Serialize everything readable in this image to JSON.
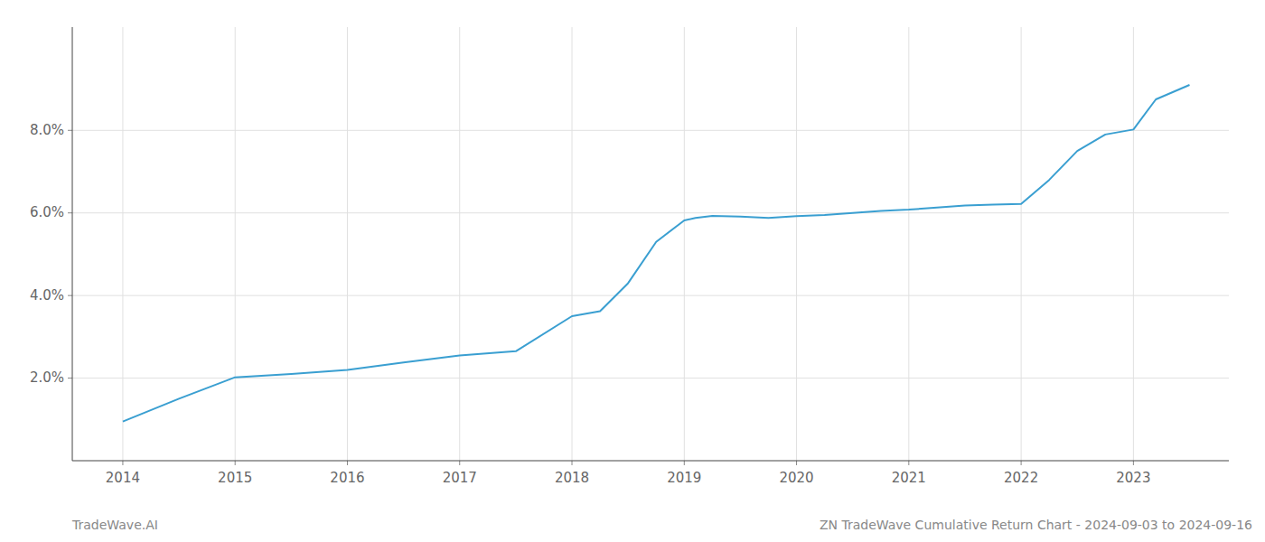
{
  "chart_data": {
    "type": "line",
    "x": [
      2014.0,
      2014.5,
      2015.0,
      2015.5,
      2016.0,
      2016.5,
      2017.0,
      2017.5,
      2018.0,
      2018.25,
      2018.5,
      2018.75,
      2019.0,
      2019.1,
      2019.25,
      2019.5,
      2019.75,
      2020.0,
      2020.25,
      2020.5,
      2020.75,
      2021.0,
      2021.25,
      2021.5,
      2021.75,
      2022.0,
      2022.25,
      2022.5,
      2022.75,
      2023.0,
      2023.2,
      2023.5
    ],
    "values": [
      0.95,
      1.5,
      2.02,
      2.1,
      2.2,
      2.38,
      2.55,
      2.65,
      3.5,
      3.62,
      4.3,
      5.3,
      5.82,
      5.88,
      5.93,
      5.91,
      5.88,
      5.92,
      5.95,
      6.0,
      6.05,
      6.08,
      6.13,
      6.18,
      6.2,
      6.22,
      6.8,
      7.5,
      7.9,
      8.02,
      8.75,
      9.1
    ],
    "color": "#3a9fd1",
    "xlim": [
      2013.55,
      2023.85
    ],
    "ylim": [
      0.0,
      10.5
    ],
    "xticks": [
      2014,
      2015,
      2016,
      2017,
      2018,
      2019,
      2020,
      2021,
      2022,
      2023
    ],
    "yticks": [
      {
        "value": 2.0,
        "label": "2.0%"
      },
      {
        "value": 4.0,
        "label": "4.0%"
      },
      {
        "value": 6.0,
        "label": "6.0%"
      },
      {
        "value": 8.0,
        "label": "8.0%"
      }
    ],
    "grid": true,
    "annotations": [
      "TradeWave.AI",
      "ZN TradeWave Cumulative Return Chart - 2024-09-03 to 2024-09-16"
    ]
  }
}
